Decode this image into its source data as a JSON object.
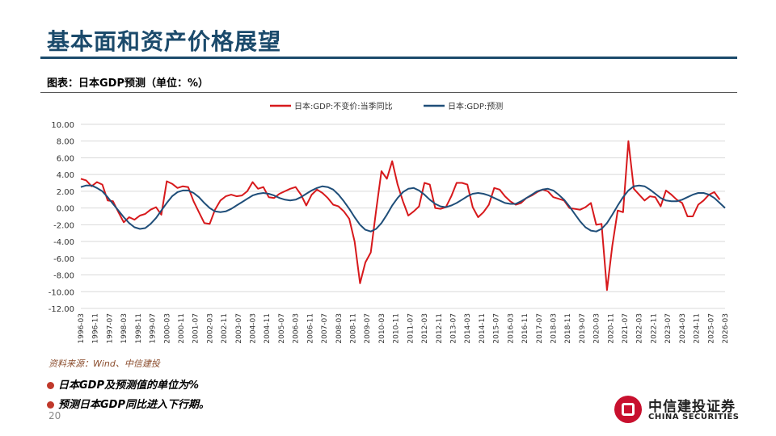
{
  "header": {
    "title": "基本面和资产价格展望"
  },
  "figure": {
    "subtitle": "图表：日本GDP预测（单位：%）",
    "source": "资料来源：Wind、中信建投"
  },
  "notes": [
    "日本GDP及预测值的单位为%",
    "预测日本GDP同比进入下行期。"
  ],
  "page_number": "20",
  "logo": {
    "cn": "中信建投证券",
    "en": "CHINA SECURITIES"
  },
  "colors": {
    "actual": "#d7191c",
    "forecast": "#1f4e79",
    "brand": "#1b4a6b"
  },
  "chart_data": {
    "type": "line",
    "title": "",
    "xlabel": "",
    "ylabel": "",
    "ylim": [
      -12,
      10
    ],
    "yticks": [
      "10.00",
      "8.00",
      "6.00",
      "4.00",
      "2.00",
      "0.00",
      "-2.00",
      "-4.00",
      "-6.00",
      "-8.00",
      "-10.00",
      "-12.00"
    ],
    "x_start": "1996-03",
    "x_step_quarters": 1,
    "x_ticks": [
      "1996-03",
      "1996-11",
      "1997-07",
      "1998-03",
      "1998-11",
      "1999-07",
      "2000-03",
      "2000-11",
      "2001-07",
      "2002-03",
      "2002-11",
      "2003-07",
      "2004-03",
      "2004-11",
      "2005-07",
      "2006-03",
      "2006-11",
      "2007-07",
      "2008-03",
      "2008-11",
      "2009-07",
      "2010-03",
      "2010-11",
      "2011-07",
      "2012-03",
      "2012-11",
      "2013-07",
      "2014-03",
      "2014-11",
      "2015-07",
      "2016-03",
      "2016-11",
      "2017-07",
      "2018-03",
      "2018-11",
      "2019-07",
      "2020-03",
      "2020-11",
      "2021-07",
      "2022-03",
      "2022-11",
      "2023-07",
      "2024-03",
      "2024-11",
      "2025-07",
      "2026-03"
    ],
    "legend_position": "top-center",
    "series": [
      {
        "name": "日本:GDP:不变价:当季同比",
        "values": [
          3.5,
          3.3,
          2.6,
          3.1,
          2.8,
          0.9,
          0.8,
          -0.5,
          -1.7,
          -1.1,
          -1.4,
          -0.9,
          -0.7,
          -0.2,
          0.1,
          -0.8,
          3.2,
          2.9,
          2.4,
          2.6,
          2.5,
          0.8,
          -0.5,
          -1.8,
          -1.9,
          -0.2,
          0.9,
          1.4,
          1.6,
          1.4,
          1.5,
          2.0,
          3.1,
          2.3,
          2.5,
          1.3,
          1.2,
          1.7,
          2.0,
          2.3,
          2.5,
          1.6,
          0.3,
          1.6,
          2.2,
          1.8,
          1.2,
          0.4,
          0.2,
          -0.4,
          -1.3,
          -4.0,
          -9.0,
          -6.5,
          -5.3,
          -0.3,
          4.4,
          3.5,
          5.6,
          2.8,
          0.8,
          -0.9,
          -0.4,
          0.2,
          3.0,
          2.8,
          0.0,
          -0.1,
          0.1,
          1.4,
          3.0,
          3.0,
          2.8,
          0.1,
          -1.1,
          -0.5,
          0.4,
          2.4,
          2.2,
          1.4,
          0.8,
          0.4,
          0.6,
          1.2,
          1.5,
          1.9,
          2.2,
          2.0,
          1.3,
          1.1,
          0.9,
          0.0,
          -0.1,
          -0.2,
          0.1,
          0.6,
          -2.0,
          -1.9,
          -9.8,
          -4.5,
          -0.3,
          -0.5,
          8.0,
          2.3,
          1.6,
          0.9,
          1.4,
          1.3,
          0.2,
          2.1,
          1.6,
          1.0,
          0.6,
          -1.0,
          -1.0,
          0.4,
          0.9,
          1.6,
          1.9,
          1.0
        ]
      },
      {
        "name": "日本:GDP:预测",
        "values": [
          2.5,
          2.7,
          2.7,
          2.4,
          2.0,
          1.3,
          0.5,
          -0.3,
          -1.1,
          -1.8,
          -2.3,
          -2.5,
          -2.4,
          -1.9,
          -1.2,
          -0.3,
          0.6,
          1.4,
          1.9,
          2.1,
          2.1,
          1.8,
          1.3,
          0.6,
          0.0,
          -0.4,
          -0.5,
          -0.4,
          -0.1,
          0.3,
          0.7,
          1.1,
          1.5,
          1.7,
          1.8,
          1.7,
          1.5,
          1.2,
          1.0,
          0.9,
          1.0,
          1.3,
          1.7,
          2.1,
          2.4,
          2.6,
          2.5,
          2.2,
          1.6,
          0.8,
          -0.1,
          -1.1,
          -2.0,
          -2.6,
          -2.8,
          -2.5,
          -1.8,
          -0.8,
          0.3,
          1.2,
          1.9,
          2.3,
          2.4,
          2.1,
          1.6,
          1.0,
          0.5,
          0.2,
          0.1,
          0.3,
          0.6,
          1.0,
          1.4,
          1.7,
          1.8,
          1.7,
          1.5,
          1.2,
          0.9,
          0.6,
          0.5,
          0.5,
          0.8,
          1.2,
          1.6,
          2.0,
          2.2,
          2.3,
          2.1,
          1.6,
          1.0,
          0.2,
          -0.7,
          -1.6,
          -2.3,
          -2.7,
          -2.8,
          -2.5,
          -1.8,
          -0.8,
          0.3,
          1.3,
          2.1,
          2.6,
          2.7,
          2.6,
          2.2,
          1.7,
          1.2,
          0.9,
          0.8,
          0.8,
          1.0,
          1.3,
          1.6,
          1.8,
          1.8,
          1.6,
          1.2,
          0.6,
          0.0
        ]
      }
    ]
  }
}
